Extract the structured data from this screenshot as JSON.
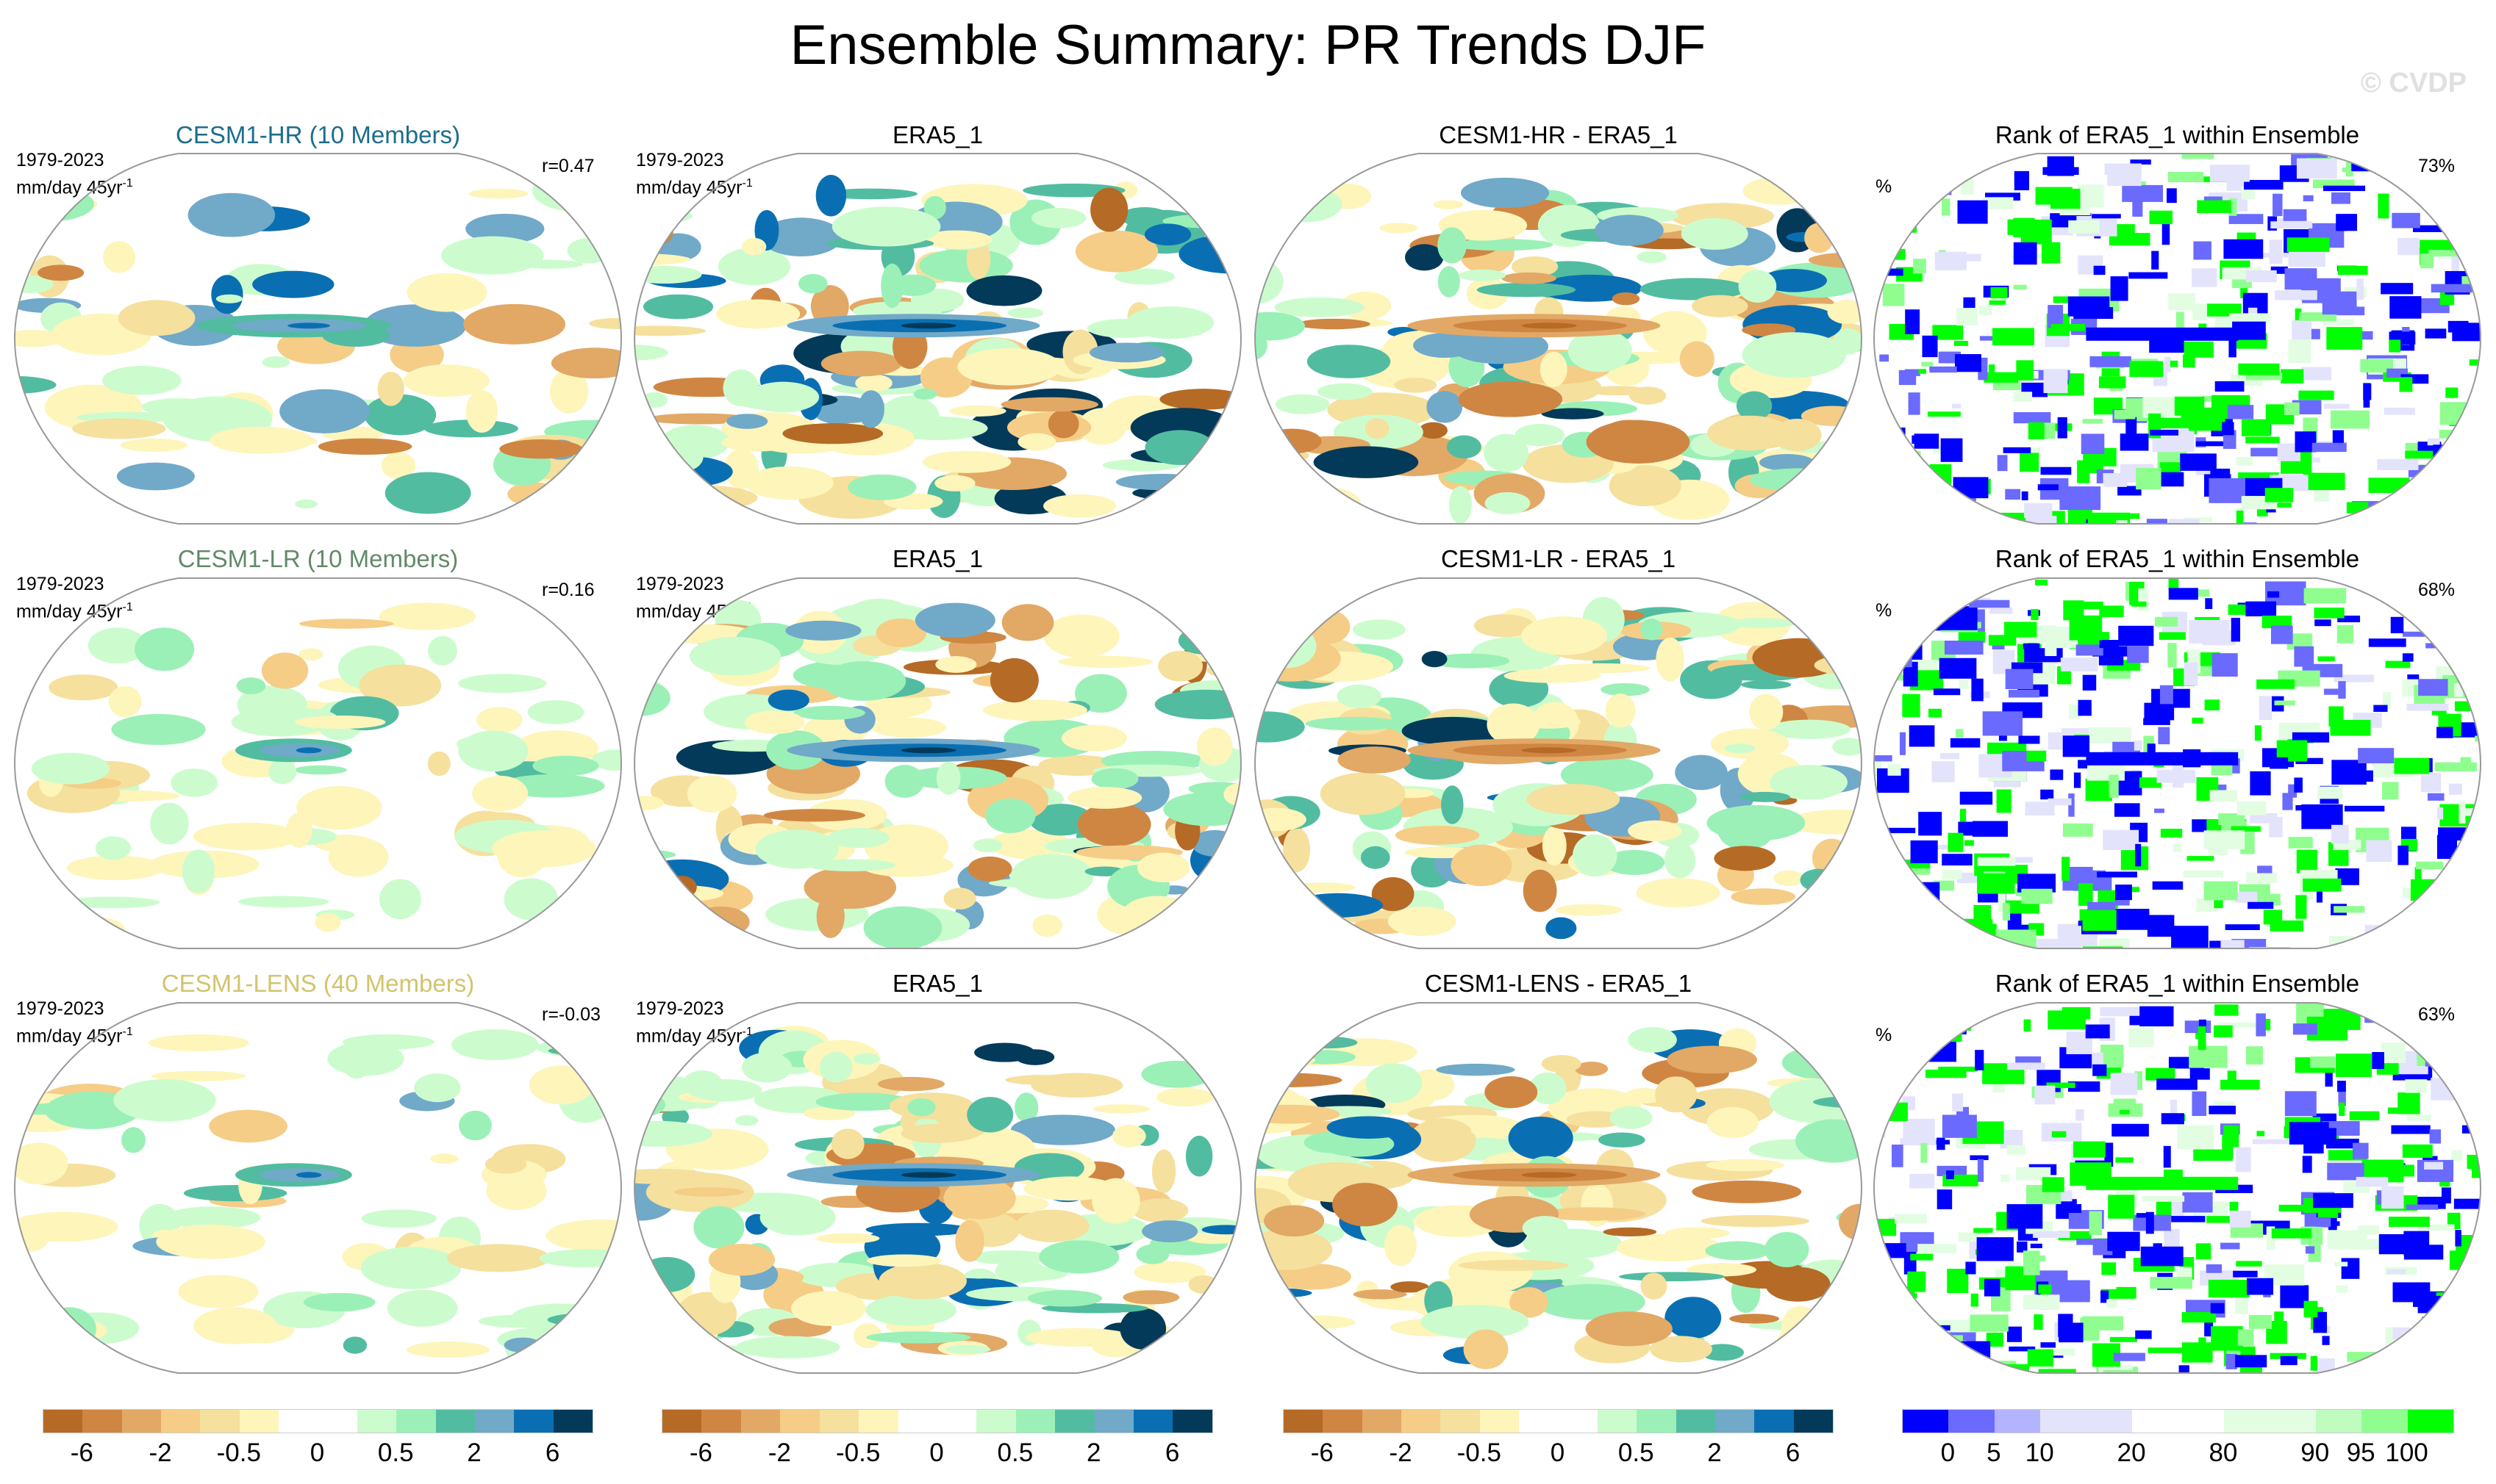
{
  "title": "Ensemble Summary: PR Trends DJF",
  "watermark": "© CVDP",
  "rows": [
    {
      "model_title": "CESM1-HR (10 Members)",
      "model_color": "#1d6d8c",
      "years": "1979-2023",
      "units": "mm/day 45yr",
      "units_sup": "-1",
      "r": "r=0.47",
      "obs_title": "ERA5_1",
      "diff_title": "CESM1-HR - ERA5_1",
      "rank_title": "Rank of ERA5_1 within Ensemble",
      "rank_unit": "%",
      "rank_pct": "73%"
    },
    {
      "model_title": "CESM1-LR (10 Members)",
      "model_color": "#628a68",
      "years": "1979-2023",
      "units": "mm/day 45yr",
      "units_sup": "-1",
      "r": "r=0.16",
      "obs_title": "ERA5_1",
      "diff_title": "CESM1-LR - ERA5_1",
      "rank_title": "Rank of ERA5_1 within Ensemble",
      "rank_unit": "%",
      "rank_pct": "68%"
    },
    {
      "model_title": "CESM1-LENS (40 Members)",
      "model_color": "#d2c46c",
      "years": "1979-2023",
      "units": "mm/day 45yr",
      "units_sup": "-1",
      "r": "r=-0.03",
      "obs_title": "ERA5_1",
      "diff_title": "CESM1-LENS - ERA5_1",
      "rank_title": "Rank of ERA5_1 within Ensemble",
      "rank_unit": "%",
      "rank_pct": "63%"
    }
  ],
  "chart_data": {
    "type": "heatmap",
    "title": "Ensemble Summary: PR Trends DJF",
    "trend_colorbar": {
      "colors": [
        "#b56a26",
        "#cf8642",
        "#e2a865",
        "#f5cd87",
        "#f5e09d",
        "#fef5ba",
        "#ffffff",
        "#ffffff",
        "#ccfcce",
        "#9bf0b7",
        "#52bca1",
        "#71a9c9",
        "#0a6fb2",
        "#033a5a"
      ],
      "labels": [
        "-6",
        "-2",
        "-0.5",
        "0",
        "0.5",
        "2",
        "6"
      ],
      "label_positions": [
        1,
        3,
        5,
        7,
        9,
        11,
        13
      ]
    },
    "rank_colorbar": {
      "colors": [
        "#0000ff",
        "#6a6aff",
        "#b3b3ff",
        "#e3e3fc",
        "#e3e3fc",
        "#ffffff",
        "#ffffff",
        "#e3fde3",
        "#e3fde3",
        "#c0fcc0",
        "#8ffe8f",
        "#00ff00"
      ],
      "labels": [
        "0",
        "5",
        "10",
        "20",
        "80",
        "90",
        "95",
        "100"
      ],
      "label_positions": [
        1,
        2,
        3,
        5,
        7,
        9,
        10,
        11
      ]
    }
  }
}
